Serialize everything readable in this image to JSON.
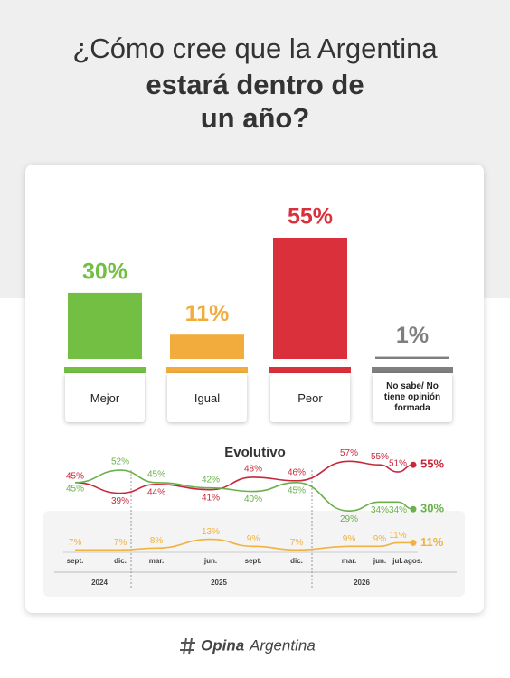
{
  "header": {
    "title": [
      "¿Cómo cree que la Argentina",
      "estará dentro de",
      "un año?"
    ]
  },
  "chart_data": [
    {
      "type": "bar",
      "categories": [
        "Mejor",
        "Igual",
        "Peor",
        "No sabe/ No tiene opinión formada"
      ],
      "values": [
        30,
        11,
        55,
        1
      ],
      "value_labels": [
        "30%",
        "11%",
        "55%",
        "1%"
      ],
      "colors": [
        "#72bf44",
        "#f2ac3e",
        "#d9303c",
        "#7f7f7f"
      ]
    },
    {
      "type": "line",
      "title": "Evolutivo",
      "categories": [
        "sept.",
        "dic.",
        "mar.",
        "jun.",
        "sept.",
        "dic.",
        "mar.",
        "jun.",
        "jul.",
        "agos."
      ],
      "category_groups": [
        "2024",
        "2025",
        "2026"
      ],
      "series": [
        {
          "color": "#c8283a",
          "values": [
            45,
            39,
            44,
            41,
            48,
            46,
            57,
            55,
            51,
            55
          ],
          "value_labels": [
            "45%",
            "39%",
            "44%",
            "41%",
            "48%",
            "46%",
            "57%",
            "55%",
            "51%",
            "55%"
          ]
        },
        {
          "color": "#6ab04c",
          "values": [
            45,
            52,
            45,
            42,
            40,
            45,
            29,
            34,
            34,
            30
          ],
          "value_labels": [
            "45%",
            "52%",
            "45%",
            "42%",
            "40%",
            "45%",
            "29%",
            "34%",
            "34%",
            "30%"
          ]
        },
        {
          "color": "#f0b240",
          "values": [
            7,
            7,
            8,
            13,
            9,
            7,
            9,
            9,
            11,
            11
          ],
          "value_labels": [
            "7%",
            "7%",
            "8%",
            "13%",
            "9%",
            "7%",
            "9%",
            "9%",
            "11%",
            "11%"
          ]
        }
      ]
    }
  ],
  "footer": {
    "brand": [
      "Opina",
      "Argentina"
    ]
  }
}
